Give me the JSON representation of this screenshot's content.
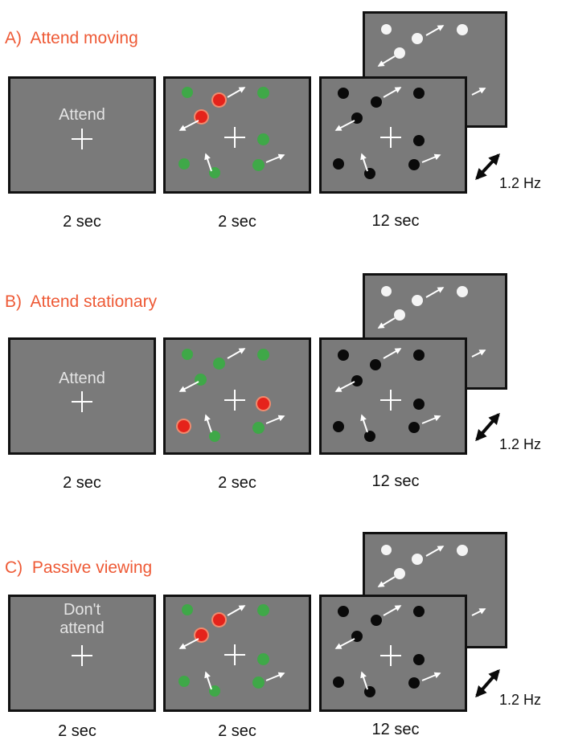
{
  "panels": [
    {
      "title": "A)  Attend moving",
      "cue_lines": [
        "Attend"
      ],
      "durations": [
        "2 sec",
        "2 sec",
        "12 sec"
      ],
      "frequency": "1.2 Hz",
      "red_dots": [
        "upper-left pair"
      ]
    },
    {
      "title": "B)  Attend stationary",
      "cue_lines": [
        "Attend"
      ],
      "durations": [
        "2 sec",
        "2 sec",
        "12 sec"
      ],
      "frequency": "1.2 Hz",
      "red_dots": [
        "right-middle",
        "lower-left"
      ]
    },
    {
      "title": "C)  Passive viewing",
      "cue_lines": [
        "Don't",
        "attend"
      ],
      "durations": [
        "2 sec",
        "2 sec",
        "12 sec"
      ],
      "frequency": "1.2 Hz",
      "red_dots": [
        "upper-left pair"
      ]
    }
  ],
  "colors": {
    "title": "#ee5a36",
    "screen_background": "#7a7a7a",
    "attended_dot": "#e5231b",
    "unattended_dot": "#3fa848",
    "test_dot_dark": "#0a0a0a",
    "test_dot_light": "#f4f4f4",
    "arrow": "#ffffff"
  }
}
